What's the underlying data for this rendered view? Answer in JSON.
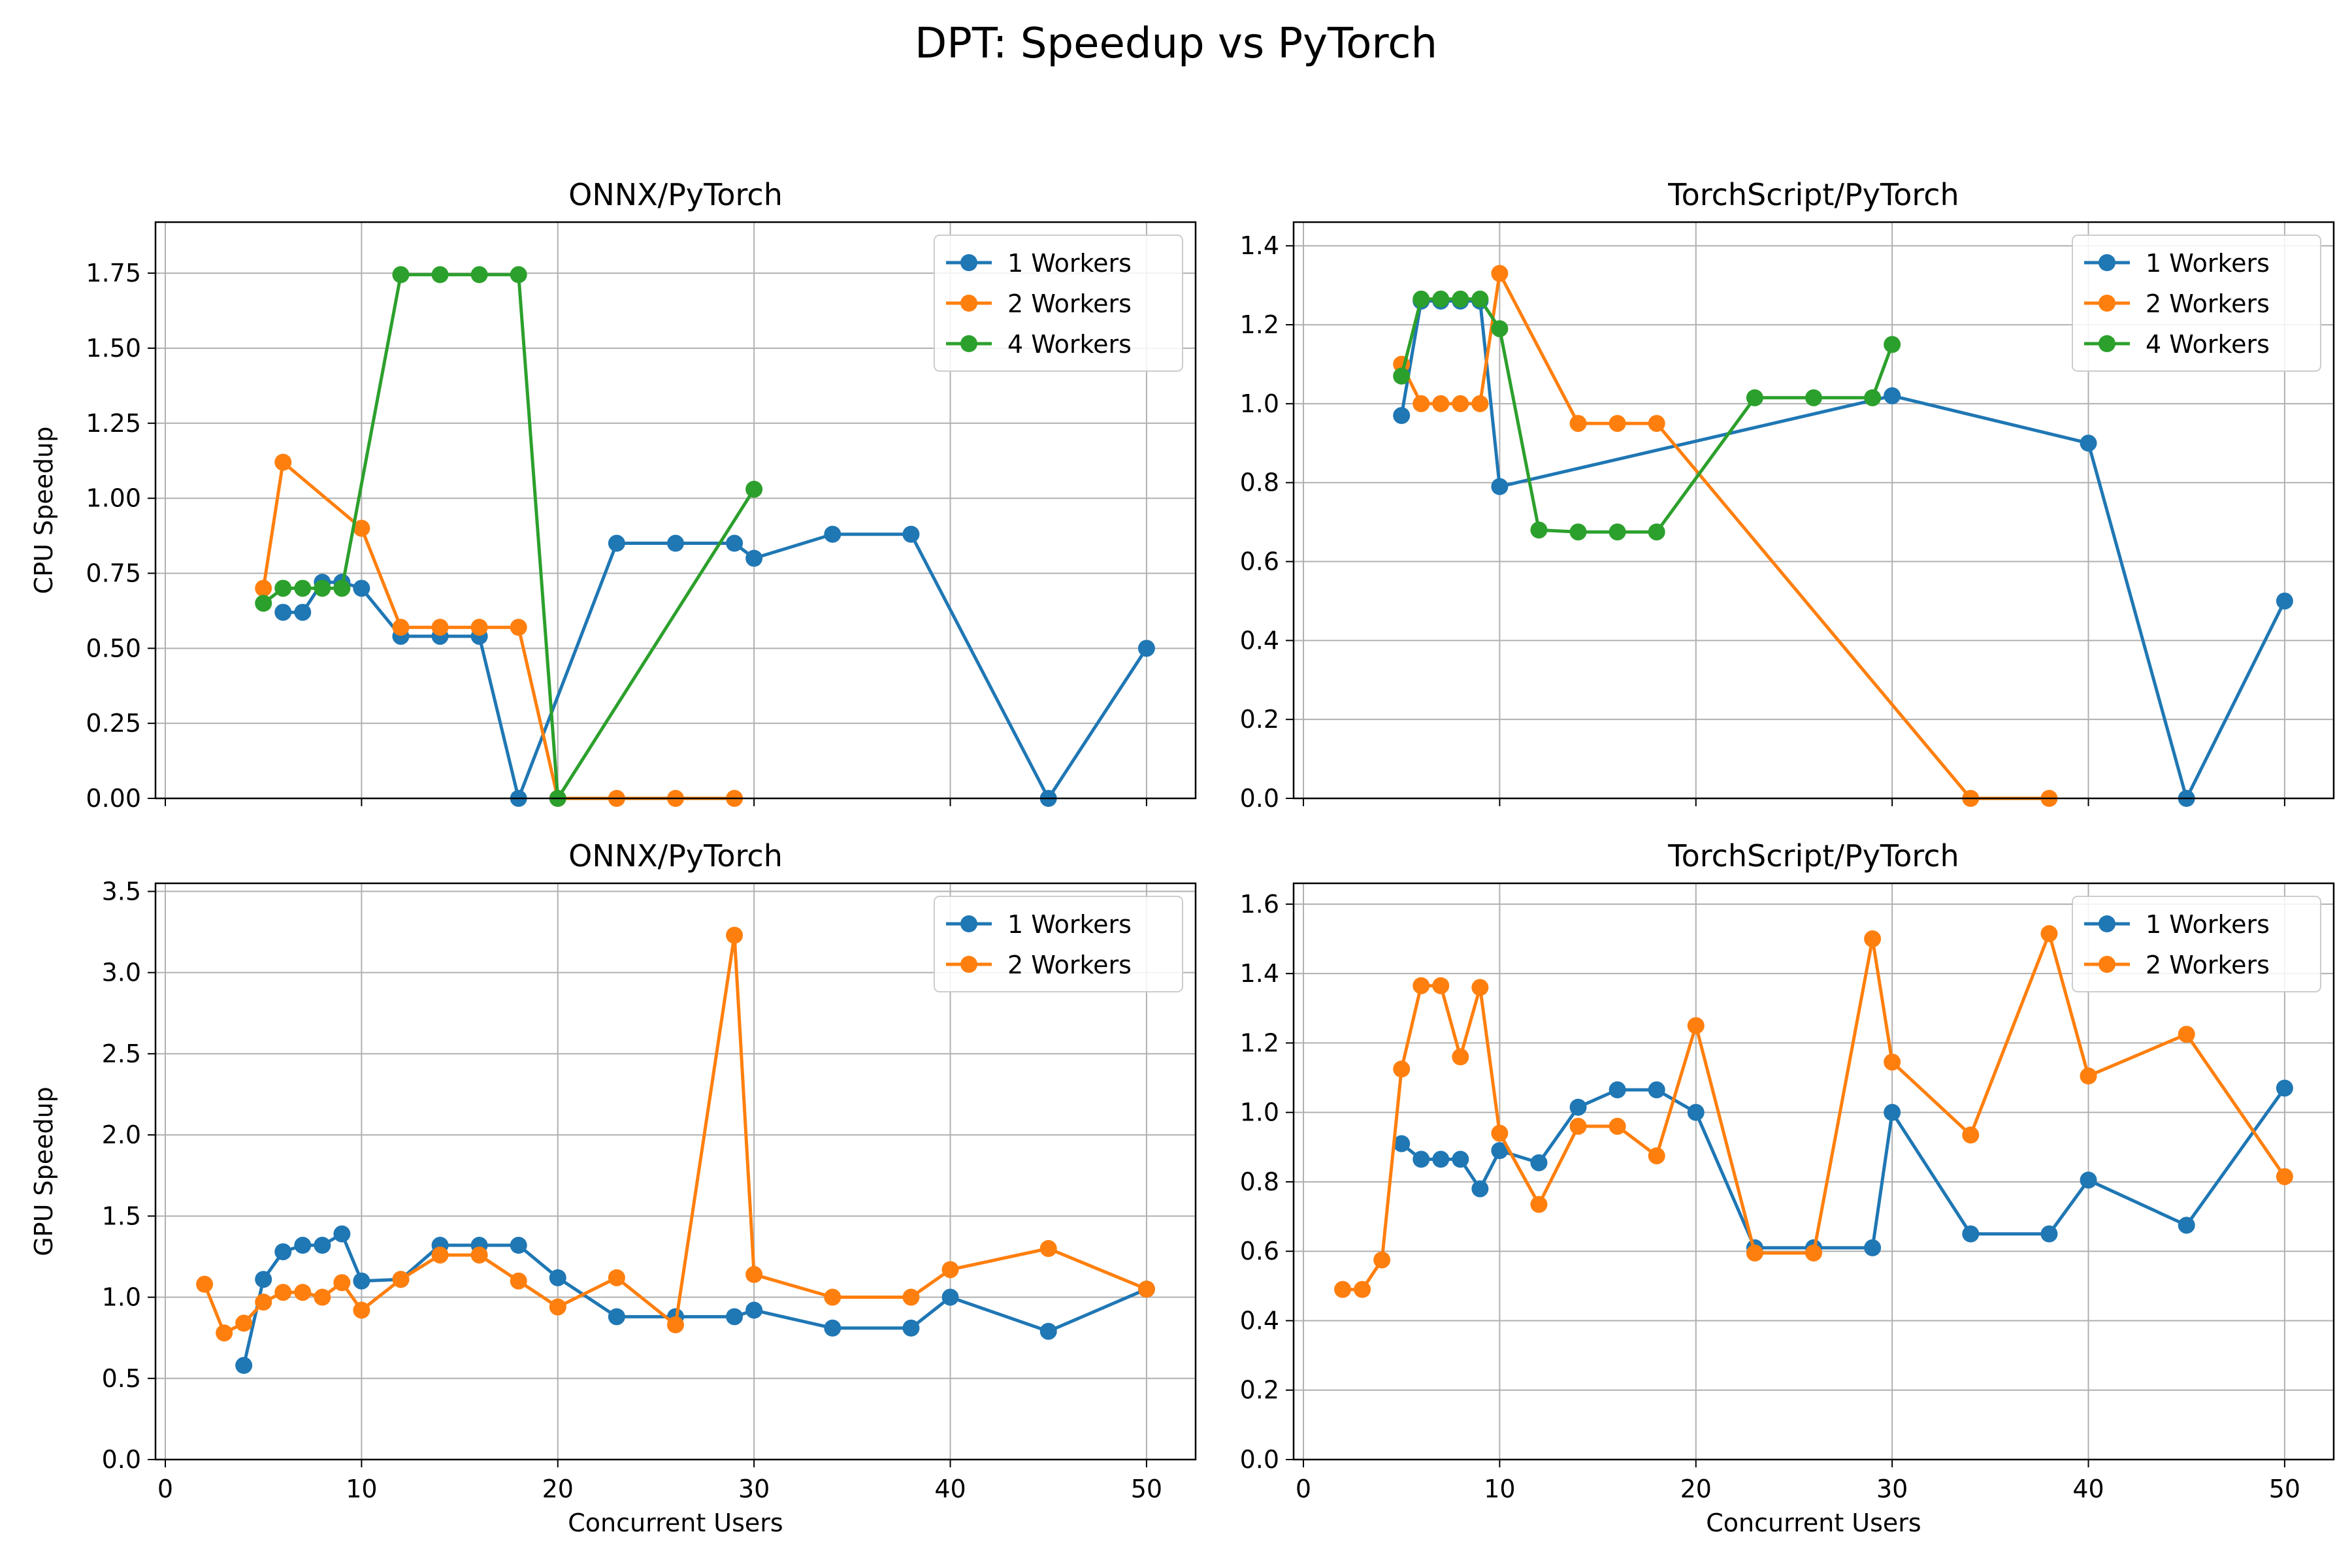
{
  "figure_title": "DPT: Speedup vs PyTorch",
  "colors": {
    "1 Workers": "#1f77b4",
    "2 Workers": "#ff7f0e",
    "4 Workers": "#2ca02c",
    "grid": "#b0b0b0"
  },
  "chart_data": [
    {
      "type": "line",
      "title": "ONNX/PyTorch",
      "xlabel": "",
      "ylabel": "CPU Speedup",
      "xlim": [
        -0.5,
        52.5
      ],
      "ylim": [
        0,
        1.92
      ],
      "xticks": [
        0,
        10,
        20,
        30,
        40,
        50
      ],
      "show_xtick_labels": false,
      "yticks": [
        0,
        0.25,
        0.5,
        0.75,
        1.0,
        1.25,
        1.5,
        1.75
      ],
      "ytick_labels": [
        "0.00",
        "0.25",
        "0.50",
        "0.75",
        "1.00",
        "1.25",
        "1.50",
        "1.75"
      ],
      "grid": true,
      "legend": "top-right",
      "series": [
        {
          "name": "1 Workers",
          "x": [
            6,
            7,
            8,
            9,
            10,
            12,
            14,
            16,
            18,
            23,
            26,
            29,
            30,
            34,
            38,
            45,
            50
          ],
          "y": [
            0.62,
            0.62,
            0.72,
            0.72,
            0.7,
            0.54,
            0.54,
            0.54,
            0.0,
            0.85,
            0.85,
            0.85,
            0.8,
            0.88,
            0.88,
            0.0,
            0.5
          ]
        },
        {
          "name": "2 Workers",
          "x": [
            5,
            6,
            10,
            12,
            14,
            16,
            18,
            20,
            23,
            26,
            29
          ],
          "y": [
            0.7,
            1.12,
            0.9,
            0.57,
            0.57,
            0.57,
            0.57,
            0.0,
            0.0,
            0.0,
            0.0
          ]
        },
        {
          "name": "4 Workers",
          "x": [
            5,
            6,
            7,
            8,
            9,
            12,
            14,
            16,
            18,
            20,
            30
          ],
          "y": [
            0.65,
            0.7,
            0.7,
            0.7,
            0.7,
            1.745,
            1.745,
            1.745,
            1.745,
            0.0,
            1.03
          ]
        }
      ]
    },
    {
      "type": "line",
      "title": "TorchScript/PyTorch",
      "xlabel": "",
      "ylabel": "",
      "xlim": [
        -0.5,
        52.5
      ],
      "ylim": [
        0,
        1.46
      ],
      "xticks": [
        0,
        10,
        20,
        30,
        40,
        50
      ],
      "show_xtick_labels": false,
      "yticks": [
        0,
        0.2,
        0.4,
        0.6,
        0.8,
        1.0,
        1.2,
        1.4
      ],
      "ytick_labels": [
        "0.0",
        "0.2",
        "0.4",
        "0.6",
        "0.8",
        "1.0",
        "1.2",
        "1.4"
      ],
      "grid": true,
      "legend": "top-right",
      "series": [
        {
          "name": "1 Workers",
          "x": [
            5,
            6,
            7,
            8,
            9,
            10,
            30,
            40,
            45,
            50
          ],
          "y": [
            0.97,
            1.26,
            1.26,
            1.26,
            1.26,
            0.79,
            1.02,
            0.9,
            0.0,
            0.5
          ]
        },
        {
          "name": "2 Workers",
          "x": [
            5,
            6,
            7,
            8,
            9,
            10,
            14,
            16,
            18,
            34,
            38
          ],
          "y": [
            1.1,
            1.0,
            1.0,
            1.0,
            1.0,
            1.33,
            0.95,
            0.95,
            0.95,
            0.0,
            0.0
          ]
        },
        {
          "name": "4 Workers",
          "x": [
            5,
            6,
            7,
            8,
            9,
            10,
            12,
            14,
            16,
            18,
            23,
            26,
            29,
            30
          ],
          "y": [
            1.07,
            1.265,
            1.265,
            1.265,
            1.265,
            1.19,
            0.68,
            0.675,
            0.675,
            0.675,
            1.015,
            1.015,
            1.015,
            1.15
          ]
        }
      ]
    },
    {
      "type": "line",
      "title": "ONNX/PyTorch",
      "xlabel": "Concurrent Users",
      "ylabel": "GPU Speedup",
      "xlim": [
        -0.5,
        52.5
      ],
      "ylim": [
        0,
        3.55
      ],
      "xticks": [
        0,
        10,
        20,
        30,
        40,
        50
      ],
      "show_xtick_labels": true,
      "yticks": [
        0,
        0.5,
        1.0,
        1.5,
        2.0,
        2.5,
        3.0,
        3.5
      ],
      "ytick_labels": [
        "0.0",
        "0.5",
        "1.0",
        "1.5",
        "2.0",
        "2.5",
        "3.0",
        "3.5"
      ],
      "grid": true,
      "legend": "top-right",
      "series": [
        {
          "name": "1 Workers",
          "x": [
            4,
            5,
            6,
            7,
            8,
            9,
            10,
            12,
            14,
            16,
            18,
            20,
            23,
            26,
            29,
            30,
            34,
            38,
            40,
            45,
            50
          ],
          "y": [
            0.58,
            1.11,
            1.28,
            1.32,
            1.32,
            1.39,
            1.1,
            1.11,
            1.32,
            1.32,
            1.32,
            1.12,
            0.88,
            0.88,
            0.88,
            0.92,
            0.81,
            0.81,
            1.0,
            0.79,
            1.05
          ]
        },
        {
          "name": "2 Workers",
          "x": [
            2,
            3,
            4,
            5,
            6,
            7,
            8,
            9,
            10,
            12,
            14,
            16,
            18,
            20,
            23,
            26,
            29,
            30,
            34,
            38,
            40,
            45,
            50
          ],
          "y": [
            1.08,
            0.78,
            0.84,
            0.97,
            1.03,
            1.03,
            1.0,
            1.09,
            0.92,
            1.11,
            1.26,
            1.26,
            1.1,
            0.94,
            1.12,
            0.83,
            3.23,
            1.14,
            1.0,
            1.0,
            1.17,
            1.3,
            1.05
          ]
        }
      ]
    },
    {
      "type": "line",
      "title": "TorchScript/PyTorch",
      "xlabel": "Concurrent Users",
      "ylabel": "",
      "xlim": [
        -0.5,
        52.5
      ],
      "ylim": [
        0,
        1.66
      ],
      "xticks": [
        0,
        10,
        20,
        30,
        40,
        50
      ],
      "show_xtick_labels": true,
      "yticks": [
        0,
        0.2,
        0.4,
        0.6,
        0.8,
        1.0,
        1.2,
        1.4,
        1.6
      ],
      "ytick_labels": [
        "0.0",
        "0.2",
        "0.4",
        "0.6",
        "0.8",
        "1.0",
        "1.2",
        "1.4",
        "1.6"
      ],
      "grid": true,
      "legend": "top-right",
      "series": [
        {
          "name": "1 Workers",
          "x": [
            5,
            6,
            7,
            8,
            9,
            10,
            12,
            14,
            16,
            18,
            20,
            23,
            26,
            29,
            30,
            34,
            38,
            40,
            45,
            50
          ],
          "y": [
            0.91,
            0.865,
            0.865,
            0.865,
            0.78,
            0.89,
            0.855,
            1.015,
            1.065,
            1.065,
            1.0,
            0.61,
            0.61,
            0.61,
            1.0,
            0.65,
            0.65,
            0.805,
            0.675,
            1.07
          ]
        },
        {
          "name": "2 Workers",
          "x": [
            2,
            3,
            4,
            5,
            6,
            7,
            8,
            9,
            10,
            12,
            14,
            16,
            18,
            20,
            23,
            26,
            29,
            30,
            34,
            38,
            40,
            45,
            50
          ],
          "y": [
            0.49,
            0.49,
            0.575,
            1.125,
            1.365,
            1.365,
            1.16,
            1.36,
            0.94,
            0.735,
            0.96,
            0.96,
            0.875,
            1.25,
            0.595,
            0.595,
            1.5,
            1.145,
            0.935,
            1.515,
            1.105,
            1.225,
            0.815
          ]
        }
      ]
    }
  ]
}
